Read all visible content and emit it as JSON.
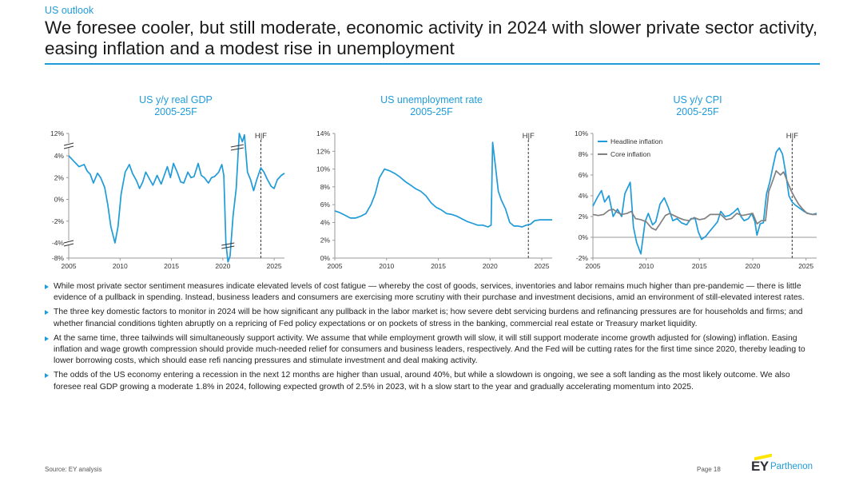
{
  "header": {
    "eyebrow": "US outlook",
    "headline": "We foresee cooler, but still moderate, economic activity in 2024 with slower private sector activity, easing inflation and a modest rise in unemployment"
  },
  "colors": {
    "accent": "#1f9bd9",
    "headline_series": "#1f9bd9",
    "core_series": "#808080",
    "logo_bar": "#ffe600"
  },
  "chart_data": [
    {
      "type": "line",
      "title": "US y/y real GDP",
      "subtitle": "2005-25F",
      "xlabel": "",
      "ylabel": "",
      "x_ticks": [
        "2005",
        "2010",
        "2015",
        "2020",
        "2025"
      ],
      "xlim": [
        2005,
        2026
      ],
      "y_ticks": [
        "-8%",
        "-4%",
        "-2%",
        "0%",
        "2%",
        "4%",
        "12%"
      ],
      "y_axis_breaks": [
        "between 4% and 12%",
        "between -4% and -8%"
      ],
      "forecast_marker": {
        "label": "H|F",
        "x": 2023.7
      },
      "grid": false,
      "legend": "none",
      "series": [
        {
          "points": [
            [
              2005.0,
              4.0
            ],
            [
              2005.5,
              3.5
            ],
            [
              2006.0,
              3.0
            ],
            [
              2006.5,
              3.2
            ],
            [
              2006.8,
              2.6
            ],
            [
              2007.1,
              2.3
            ],
            [
              2007.4,
              1.5
            ],
            [
              2007.8,
              2.4
            ],
            [
              2008.1,
              2.0
            ],
            [
              2008.5,
              1.1
            ],
            [
              2008.8,
              -0.5
            ],
            [
              2009.1,
              -2.5
            ],
            [
              2009.5,
              -4.0
            ],
            [
              2009.8,
              -2.5
            ],
            [
              2010.1,
              0.5
            ],
            [
              2010.5,
              2.5
            ],
            [
              2010.9,
              3.2
            ],
            [
              2011.2,
              2.4
            ],
            [
              2011.6,
              1.7
            ],
            [
              2011.9,
              1.0
            ],
            [
              2012.2,
              1.6
            ],
            [
              2012.5,
              2.5
            ],
            [
              2012.9,
              1.8
            ],
            [
              2013.2,
              1.3
            ],
            [
              2013.6,
              2.2
            ],
            [
              2014.0,
              1.4
            ],
            [
              2014.3,
              2.2
            ],
            [
              2014.6,
              3.0
            ],
            [
              2014.9,
              2.0
            ],
            [
              2015.2,
              3.3
            ],
            [
              2015.6,
              2.4
            ],
            [
              2015.9,
              1.6
            ],
            [
              2016.2,
              1.5
            ],
            [
              2016.6,
              2.5
            ],
            [
              2016.9,
              2.0
            ],
            [
              2017.2,
              2.1
            ],
            [
              2017.6,
              3.3
            ],
            [
              2017.9,
              2.2
            ],
            [
              2018.2,
              2.0
            ],
            [
              2018.6,
              1.5
            ],
            [
              2018.9,
              2.0
            ],
            [
              2019.2,
              2.1
            ],
            [
              2019.6,
              2.5
            ],
            [
              2019.9,
              3.2
            ],
            [
              2020.1,
              2.2
            ],
            [
              2020.3,
              -4.0
            ],
            [
              2020.5,
              -9.0
            ],
            [
              2020.7,
              -7.5
            ],
            [
              2021.0,
              -1.5
            ],
            [
              2021.3,
              1.0
            ],
            [
              2021.6,
              12.0
            ],
            [
              2021.9,
              9.0
            ],
            [
              2022.1,
              11.5
            ],
            [
              2022.4,
              2.5
            ],
            [
              2022.7,
              1.8
            ],
            [
              2023.0,
              0.8
            ],
            [
              2023.3,
              1.8
            ],
            [
              2023.7,
              2.9
            ],
            [
              2024.0,
              2.5
            ],
            [
              2024.3,
              1.9
            ],
            [
              2024.7,
              1.2
            ],
            [
              2025.0,
              1.0
            ],
            [
              2025.3,
              1.8
            ],
            [
              2025.7,
              2.2
            ],
            [
              2026.0,
              2.4
            ]
          ]
        }
      ]
    },
    {
      "type": "line",
      "title": "US unemployment  rate",
      "subtitle": "2005-25F",
      "xlabel": "",
      "ylabel": "",
      "x_ticks": [
        "2005",
        "2010",
        "2015",
        "2020",
        "2025"
      ],
      "xlim": [
        2005,
        2026
      ],
      "ylim": [
        0,
        14
      ],
      "y_ticks": [
        "0%",
        "2%",
        "4%",
        "6%",
        "8%",
        "10%",
        "12%",
        "14%"
      ],
      "forecast_marker": {
        "label": "H|F",
        "x": 2023.7
      },
      "grid": false,
      "legend": "none",
      "series": [
        {
          "points": [
            [
              2005.0,
              5.3
            ],
            [
              2005.5,
              5.1
            ],
            [
              2006.0,
              4.8
            ],
            [
              2006.5,
              4.5
            ],
            [
              2007.0,
              4.5
            ],
            [
              2007.5,
              4.7
            ],
            [
              2008.0,
              5.0
            ],
            [
              2008.5,
              6.0
            ],
            [
              2008.9,
              7.2
            ],
            [
              2009.3,
              9.0
            ],
            [
              2009.8,
              10.0
            ],
            [
              2010.3,
              9.8
            ],
            [
              2010.8,
              9.5
            ],
            [
              2011.3,
              9.1
            ],
            [
              2011.8,
              8.6
            ],
            [
              2012.3,
              8.2
            ],
            [
              2012.8,
              7.8
            ],
            [
              2013.3,
              7.5
            ],
            [
              2013.8,
              7.0
            ],
            [
              2014.3,
              6.2
            ],
            [
              2014.8,
              5.7
            ],
            [
              2015.3,
              5.4
            ],
            [
              2015.8,
              5.0
            ],
            [
              2016.3,
              4.9
            ],
            [
              2016.8,
              4.7
            ],
            [
              2017.3,
              4.4
            ],
            [
              2017.8,
              4.1
            ],
            [
              2018.3,
              3.9
            ],
            [
              2018.8,
              3.7
            ],
            [
              2019.3,
              3.7
            ],
            [
              2019.8,
              3.5
            ],
            [
              2020.1,
              3.7
            ],
            [
              2020.25,
              13.0
            ],
            [
              2020.5,
              10.5
            ],
            [
              2020.8,
              7.5
            ],
            [
              2021.1,
              6.5
            ],
            [
              2021.5,
              5.5
            ],
            [
              2021.9,
              4.0
            ],
            [
              2022.3,
              3.6
            ],
            [
              2022.7,
              3.6
            ],
            [
              2023.1,
              3.5
            ],
            [
              2023.5,
              3.7
            ],
            [
              2023.9,
              3.8
            ],
            [
              2024.3,
              4.2
            ],
            [
              2024.8,
              4.3
            ],
            [
              2025.3,
              4.3
            ],
            [
              2026.0,
              4.3
            ]
          ]
        }
      ]
    },
    {
      "type": "line",
      "title": "US y/y CPI",
      "subtitle": "2005-25F",
      "xlabel": "",
      "ylabel": "",
      "x_ticks": [
        "2005",
        "2010",
        "2015",
        "2020",
        "2025"
      ],
      "xlim": [
        2005,
        2026
      ],
      "ylim": [
        -2,
        10
      ],
      "y_ticks": [
        "-2%",
        "0%",
        "2%",
        "4%",
        "6%",
        "8%",
        "10%"
      ],
      "forecast_marker": {
        "label": "H|F",
        "x": 2023.7
      },
      "grid": false,
      "legend": "top-left",
      "series": [
        {
          "name": "Headline inflation",
          "points": [
            [
              2005.0,
              3.0
            ],
            [
              2005.4,
              3.8
            ],
            [
              2005.8,
              4.5
            ],
            [
              2006.1,
              3.4
            ],
            [
              2006.5,
              4.0
            ],
            [
              2006.9,
              2.0
            ],
            [
              2007.3,
              2.7
            ],
            [
              2007.7,
              2.0
            ],
            [
              2008.0,
              4.2
            ],
            [
              2008.5,
              5.3
            ],
            [
              2008.8,
              1.0
            ],
            [
              2009.1,
              -0.5
            ],
            [
              2009.5,
              -1.6
            ],
            [
              2009.9,
              1.5
            ],
            [
              2010.2,
              2.3
            ],
            [
              2010.6,
              1.2
            ],
            [
              2010.9,
              1.5
            ],
            [
              2011.3,
              3.2
            ],
            [
              2011.7,
              3.8
            ],
            [
              2012.1,
              2.8
            ],
            [
              2012.5,
              1.6
            ],
            [
              2012.9,
              1.8
            ],
            [
              2013.3,
              1.4
            ],
            [
              2013.8,
              1.2
            ],
            [
              2014.2,
              1.8
            ],
            [
              2014.6,
              1.8
            ],
            [
              2014.9,
              0.5
            ],
            [
              2015.2,
              -0.2
            ],
            [
              2015.6,
              0.1
            ],
            [
              2015.9,
              0.5
            ],
            [
              2016.3,
              1.0
            ],
            [
              2016.7,
              1.5
            ],
            [
              2017.0,
              2.5
            ],
            [
              2017.4,
              2.0
            ],
            [
              2017.8,
              2.1
            ],
            [
              2018.2,
              2.4
            ],
            [
              2018.6,
              2.8
            ],
            [
              2018.9,
              2.0
            ],
            [
              2019.2,
              1.6
            ],
            [
              2019.6,
              1.8
            ],
            [
              2019.9,
              2.3
            ],
            [
              2020.2,
              1.5
            ],
            [
              2020.4,
              0.2
            ],
            [
              2020.7,
              1.3
            ],
            [
              2021.0,
              1.4
            ],
            [
              2021.3,
              4.2
            ],
            [
              2021.6,
              5.3
            ],
            [
              2021.9,
              6.8
            ],
            [
              2022.2,
              8.2
            ],
            [
              2022.5,
              8.6
            ],
            [
              2022.8,
              8.0
            ],
            [
              2023.1,
              6.2
            ],
            [
              2023.4,
              4.0
            ],
            [
              2023.7,
              3.4
            ],
            [
              2024.0,
              3.1
            ],
            [
              2024.4,
              2.8
            ],
            [
              2024.8,
              2.5
            ],
            [
              2025.2,
              2.3
            ],
            [
              2025.6,
              2.2
            ],
            [
              2026.0,
              2.3
            ]
          ]
        },
        {
          "name": "Core inflation",
          "points": [
            [
              2005.0,
              2.2
            ],
            [
              2005.5,
              2.1
            ],
            [
              2006.0,
              2.2
            ],
            [
              2006.5,
              2.6
            ],
            [
              2006.9,
              2.7
            ],
            [
              2007.3,
              2.4
            ],
            [
              2007.7,
              2.2
            ],
            [
              2008.2,
              2.3
            ],
            [
              2008.6,
              2.5
            ],
            [
              2009.0,
              1.8
            ],
            [
              2009.5,
              1.7
            ],
            [
              2010.0,
              1.5
            ],
            [
              2010.5,
              0.9
            ],
            [
              2010.9,
              0.7
            ],
            [
              2011.3,
              1.3
            ],
            [
              2011.8,
              2.1
            ],
            [
              2012.2,
              2.3
            ],
            [
              2012.6,
              2.1
            ],
            [
              2013.0,
              1.9
            ],
            [
              2013.5,
              1.7
            ],
            [
              2014.0,
              1.6
            ],
            [
              2014.5,
              1.9
            ],
            [
              2015.0,
              1.7
            ],
            [
              2015.5,
              1.8
            ],
            [
              2016.0,
              2.2
            ],
            [
              2016.5,
              2.2
            ],
            [
              2017.0,
              2.2
            ],
            [
              2017.5,
              1.7
            ],
            [
              2018.0,
              1.8
            ],
            [
              2018.5,
              2.3
            ],
            [
              2019.0,
              2.1
            ],
            [
              2019.5,
              2.2
            ],
            [
              2020.0,
              2.3
            ],
            [
              2020.4,
              1.3
            ],
            [
              2020.8,
              1.6
            ],
            [
              2021.2,
              1.6
            ],
            [
              2021.5,
              4.4
            ],
            [
              2021.9,
              5.5
            ],
            [
              2022.2,
              6.4
            ],
            [
              2022.6,
              6.0
            ],
            [
              2022.9,
              6.3
            ],
            [
              2023.2,
              5.5
            ],
            [
              2023.6,
              4.5
            ],
            [
              2023.9,
              3.9
            ],
            [
              2024.3,
              3.2
            ],
            [
              2024.7,
              2.7
            ],
            [
              2025.1,
              2.3
            ],
            [
              2025.6,
              2.2
            ],
            [
              2026.0,
              2.2
            ]
          ]
        }
      ]
    }
  ],
  "bullets": [
    "While most private sector sentiment measures indicate elevated levels of cost fatigue — whereby the cost of goods, services, inventories and labor remains much higher than pre-pandemic — there is little evidence of a pullback in spending. Instead, business leaders and consumers  are exercising more scrutiny with their purchase and investment decisions, amid an environment of still-elevated interest rates.",
    "The three key domestic factors to monitor in 2024 will be how significant any pullback in the labor market is; how severe debt servicing burdens and refinancing pressures are for households and firms; and whether financial conditions tighten abruptly on a repricing of Fed policy expectations or on pockets of stress in the banking, commercial real estate or Treasury market liquidity.",
    "At the same time, three tailwinds will simultaneously support activity. We assume that while employment growth will slow, it will still support moderate income growth adjusted for (slowing) inflation. Easing inflation and wage growth compression  should provide much-needed relief for consumers and business leaders, respectively. And the Fed will be cutting rates for the first time since 2020, thereby leading to lower borrowing costs, which should ease refi nancing pressures and stimulate investment and deal making activity.",
    "The odds of the US economy  entering a recession in the next 12 months are higher than usual, around 40%, but while a slowdown  is ongoing, we see a soft landing as the most likely outcome. We also foresee real GDP growing a moderate 1.8% in 2024, following expected growth of 2.5% in 2023, wit h a slow start to the year and gradually accelerating momentum into 2025."
  ],
  "footer": {
    "source": "Source:  EY analysis",
    "page": "Page 18",
    "logo_ey": "EY",
    "logo_parthenon": "Parthenon"
  }
}
